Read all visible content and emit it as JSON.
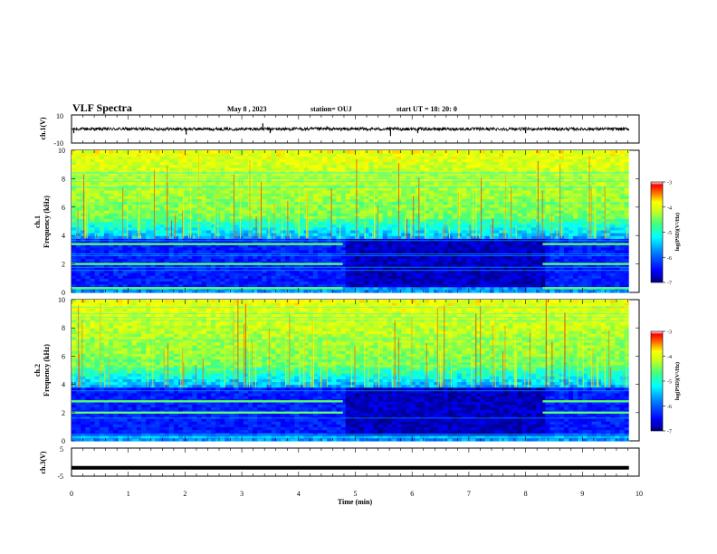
{
  "header": {
    "title": "VLF Spectra",
    "date": "May 8 , 2023",
    "station": "station= OUJ",
    "start": "start  UT =   18: 20: 0"
  },
  "chart_data": [
    {
      "type": "line",
      "name": "ch1-waveform",
      "ylabel": "ch.1(V)",
      "ylim": [
        -10,
        10
      ],
      "yticks": [
        "10",
        "-10"
      ],
      "xlim": [
        0,
        10
      ],
      "baseline": 0,
      "spikes": [
        {
          "x": 0.04,
          "y": -3
        },
        {
          "x": 2.02,
          "y": -4
        },
        {
          "x": 3.37,
          "y": 4
        },
        {
          "x": 3.5,
          "y": -3
        },
        {
          "x": 4.5,
          "y": 2
        },
        {
          "x": 5.62,
          "y": -5
        },
        {
          "x": 6.1,
          "y": -3
        },
        {
          "x": 8.0,
          "y": -3
        }
      ]
    },
    {
      "type": "heatmap",
      "name": "ch1-spectrogram",
      "ylabel": "ch.1\nFrequency (kHz)",
      "ylabel_lines": [
        "ch.1",
        "Frequency (kHz)"
      ],
      "xlim": [
        0,
        10
      ],
      "data_end_min": 9.82,
      "ylim": [
        0,
        10
      ],
      "yticks": [
        "0",
        "2",
        "4",
        "6",
        "8",
        "10"
      ],
      "segments": [
        {
          "t": [
            0,
            4.78
          ],
          "level": "active",
          "bands_khz": [
            3.4,
            2.0,
            0.3
          ]
        },
        {
          "t": [
            4.78,
            8.3
          ],
          "level": "quiet",
          "bands_khz": []
        },
        {
          "t": [
            8.3,
            9.82
          ],
          "level": "active",
          "bands_khz": [
            3.4,
            2.0,
            0.3
          ]
        }
      ],
      "colorbar": {
        "label": "log(PSD)(V²/Hz)",
        "ticks": [
          "-3",
          "-4",
          "-5",
          "-6",
          "-7"
        ],
        "range": [
          -7,
          -3
        ]
      }
    },
    {
      "type": "heatmap",
      "name": "ch2-spectrogram",
      "ylabel": "ch.2\nFrequency (kHz)",
      "ylabel_lines": [
        "ch.2",
        "Frequency (kHz)"
      ],
      "xlim": [
        0,
        10
      ],
      "data_end_min": 9.82,
      "ylim": [
        0,
        10
      ],
      "yticks": [
        "0",
        "2",
        "4",
        "6",
        "8",
        "10"
      ],
      "segments": [
        {
          "t": [
            0,
            4.78
          ],
          "level": "active",
          "bands_khz": [
            2.8,
            2.0
          ]
        },
        {
          "t": [
            4.78,
            8.3
          ],
          "level": "quiet",
          "bands_khz": []
        },
        {
          "t": [
            8.3,
            9.82
          ],
          "level": "active",
          "bands_khz": [
            2.8,
            2.0
          ]
        }
      ],
      "colorbar": {
        "label": "log(PSD)(V²/Hz)",
        "ticks": [
          "-3",
          "-4",
          "-5",
          "-6",
          "-7"
        ],
        "range": [
          -7,
          -3
        ]
      }
    },
    {
      "type": "line",
      "name": "ch3-voltage",
      "ylabel": "ch.3(V)",
      "ylim": [
        -5,
        5
      ],
      "yticks": [
        "5",
        "-5"
      ],
      "xlim": [
        0,
        10
      ],
      "value": -2,
      "xlabel": "Time  (min)",
      "xticks": [
        "0",
        "1",
        "2",
        "3",
        "4",
        "5",
        "6",
        "7",
        "8",
        "9",
        "10"
      ]
    }
  ],
  "colors": {
    "axis": "#000000",
    "trace": "#000000",
    "colormap": [
      "#0000a0",
      "#0000ff",
      "#0080ff",
      "#00e0ff",
      "#30ff90",
      "#a0ff30",
      "#ffff00",
      "#ff8000",
      "#ff0000",
      "#ffffff"
    ]
  }
}
